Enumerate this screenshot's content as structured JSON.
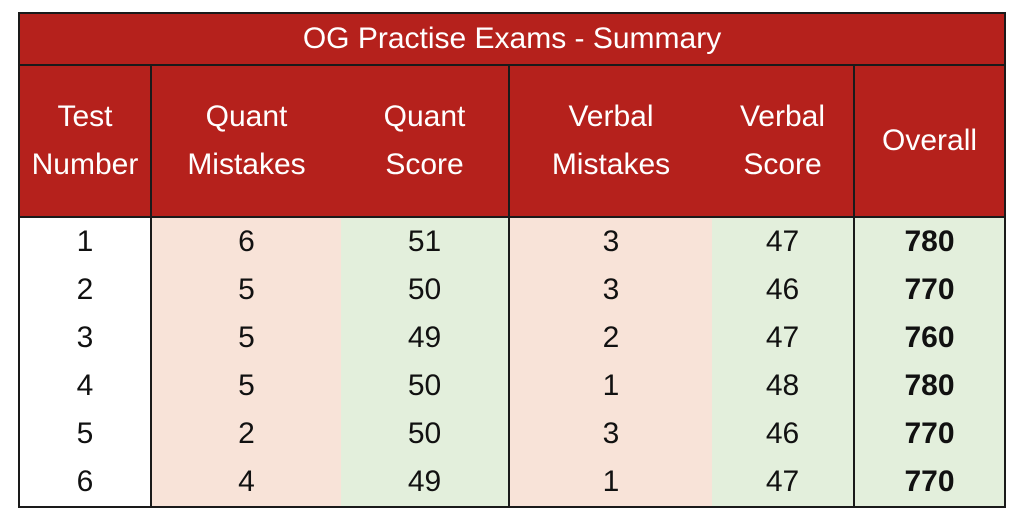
{
  "title": "OG Practise Exams - Summary",
  "headers": [
    [
      "Test",
      "Number"
    ],
    [
      "Quant",
      "Mistakes"
    ],
    [
      "Quant",
      "Score"
    ],
    [
      "Verbal",
      "Mistakes"
    ],
    [
      "Verbal",
      "Score"
    ],
    [
      "Overall"
    ]
  ],
  "rows": [
    {
      "test": "1",
      "quant_mistakes": "6",
      "quant_score": "51",
      "verbal_mistakes": "3",
      "verbal_score": "47",
      "overall": "780"
    },
    {
      "test": "2",
      "quant_mistakes": "5",
      "quant_score": "50",
      "verbal_mistakes": "3",
      "verbal_score": "46",
      "overall": "770"
    },
    {
      "test": "3",
      "quant_mistakes": "5",
      "quant_score": "49",
      "verbal_mistakes": "2",
      "verbal_score": "47",
      "overall": "760"
    },
    {
      "test": "4",
      "quant_mistakes": "5",
      "quant_score": "50",
      "verbal_mistakes": "1",
      "verbal_score": "48",
      "overall": "780"
    },
    {
      "test": "5",
      "quant_mistakes": "2",
      "quant_score": "50",
      "verbal_mistakes": "3",
      "verbal_score": "46",
      "overall": "770"
    },
    {
      "test": "6",
      "quant_mistakes": "4",
      "quant_score": "49",
      "verbal_mistakes": "1",
      "verbal_score": "47",
      "overall": "770"
    }
  ],
  "colors": {
    "header_bg": "#b5211c",
    "mistakes_bg": "#f8e3d8",
    "score_bg": "#e3efdc"
  }
}
